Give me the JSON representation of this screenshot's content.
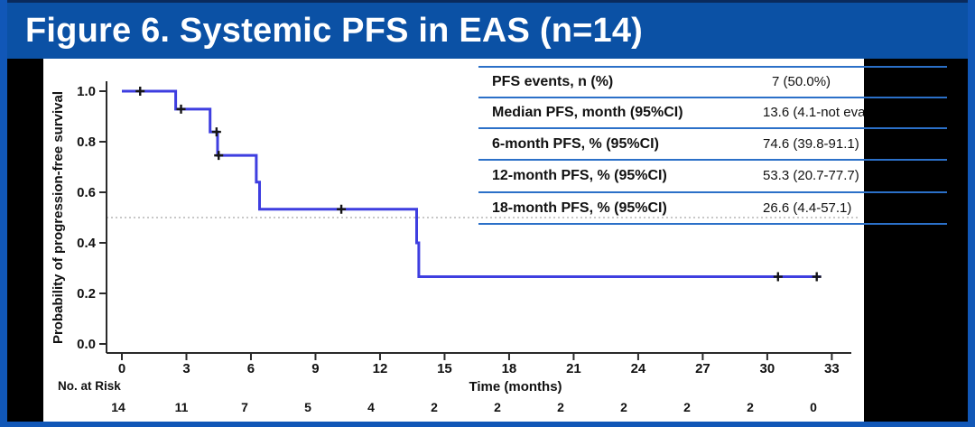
{
  "title": "Figure 6. Systemic PFS in EAS (n=14)",
  "colors": {
    "frame_blue": "#0b51a5",
    "border_blue": "#1157b7",
    "table_line_blue": "#2b70c8",
    "curve_blue": "#3e3ee0",
    "censor_black": "#151515",
    "axis_black": "#2a2a2a",
    "reference_gray": "#b5b5b5"
  },
  "stats_table": {
    "rows": [
      {
        "label": "PFS events, n (%)",
        "value": "7 (50.0%)"
      },
      {
        "label": "Median PFS, month (95%CI)",
        "value": "13.6 (4.1-not eva"
      },
      {
        "label": "6-month PFS, % (95%CI)",
        "value": "74.6 (39.8-91.1)"
      },
      {
        "label": "12-month PFS, % (95%CI)",
        "value": "53.3 (20.7-77.7)"
      },
      {
        "label": "18-month PFS, % (95%CI)",
        "value": "26.6 (4.4-57.1)"
      }
    ]
  },
  "chart_data": {
    "type": "line",
    "subtype": "kaplan-meier-step",
    "title": "Systemic PFS in EAS (n=14)",
    "xlabel": "Time (months)",
    "ylabel": "Probability of progression-free survival",
    "xlim": [
      0,
      34.7
    ],
    "ylim": [
      0,
      1.05
    ],
    "xticks": [
      0,
      3,
      6,
      9,
      12,
      15,
      18,
      21,
      24,
      27,
      30,
      33
    ],
    "yticks": [
      "0.0",
      "0.2",
      "0.4",
      "0.6",
      "0.8",
      "1.0"
    ],
    "grid": false,
    "legend": "none",
    "reference_line": {
      "y": 0.5,
      "style": "dotted"
    },
    "series": [
      {
        "name": "Systemic PFS",
        "step_points": [
          [
            0,
            1.0
          ],
          [
            2.5,
            1.0
          ],
          [
            2.5,
            0.929
          ],
          [
            4.1,
            0.929
          ],
          [
            4.1,
            0.839
          ],
          [
            4.45,
            0.839
          ],
          [
            4.45,
            0.746
          ],
          [
            6.25,
            0.746
          ],
          [
            6.25,
            0.64
          ],
          [
            6.4,
            0.64
          ],
          [
            6.4,
            0.533
          ],
          [
            13.7,
            0.533
          ],
          [
            13.7,
            0.4
          ],
          [
            13.8,
            0.4
          ],
          [
            13.8,
            0.266
          ],
          [
            32.5,
            0.266
          ]
        ],
        "censor_marks": [
          [
            0.85,
            1.0
          ],
          [
            2.75,
            0.929
          ],
          [
            4.4,
            0.839
          ],
          [
            4.5,
            0.746
          ],
          [
            10.2,
            0.533
          ],
          [
            30.5,
            0.266
          ],
          [
            32.3,
            0.266
          ]
        ]
      }
    ],
    "at_risk": {
      "label": "No. at Risk",
      "times": [
        0,
        3,
        6,
        9,
        12,
        15,
        18,
        21,
        24,
        27,
        30,
        33
      ],
      "counts": [
        14,
        11,
        7,
        5,
        4,
        2,
        2,
        2,
        2,
        2,
        2,
        0
      ]
    }
  }
}
